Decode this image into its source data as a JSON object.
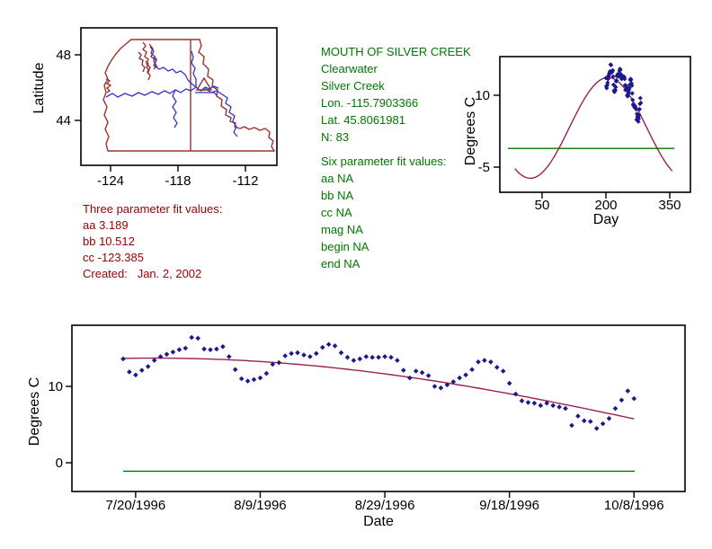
{
  "figure": {
    "background": "#FFFFFF"
  },
  "colors": {
    "axis": "#000000",
    "border_red": "#993333",
    "river_blue": "#3333CC",
    "fit_maroon": "#992255",
    "baseline_green": "#007700",
    "point_navy": "#1A1A8C",
    "annotation_green": "#007700",
    "annotation_red": "#990000"
  },
  "station_info": {
    "lines": [
      "MOUTH OF SILVER CREEK",
      "Clearwater",
      "Silver Creek",
      "Lon. -115.7903366",
      "Lat. 45.8061981",
      "N: 83"
    ]
  },
  "six_param_fit": {
    "lines": [
      "Six parameter fit values:",
      "aa NA",
      "bb NA",
      "cc NA",
      "mag NA",
      "begin NA",
      "end NA"
    ]
  },
  "three_param_fit": {
    "lines": [
      "Three parameter fit values:",
      "aa 3.189",
      "bb 10.512",
      "cc -123.385",
      "Created:   Jan. 2, 2002"
    ]
  },
  "chart_data": [
    {
      "id": "site-map",
      "type": "map",
      "xlabel": "",
      "ylabel": "Latitude",
      "x_ticks": [
        -124,
        -118,
        -112
      ],
      "y_ticks": [
        48,
        44
      ],
      "site": {
        "lon": -115.7903366,
        "lat": 45.8061981
      }
    },
    {
      "id": "seasonal-fit-plot",
      "type": "scatter",
      "title": "",
      "xlabel": "Day",
      "ylabel": "Degrees C",
      "x_ticks": [
        50,
        200,
        350
      ],
      "y_ticks": [
        10,
        -5
      ],
      "xlim": [
        -35,
        400
      ],
      "ylim": [
        -10,
        16
      ],
      "x_start_day": 200,
      "n": 83,
      "values": [
        13.6,
        11.9,
        11.5,
        12.1,
        12.6,
        13.4,
        13.9,
        14.2,
        14.5,
        14.8,
        15.0,
        16.4,
        16.3,
        14.9,
        14.8,
        14.9,
        15.2,
        13.9,
        12.2,
        11.0,
        10.7,
        10.9,
        11.1,
        11.7,
        12.9,
        13.1,
        14.0,
        14.3,
        14.4,
        14.1,
        13.9,
        14.3,
        15.1,
        15.5,
        15.3,
        14.4,
        13.8,
        13.4,
        13.6,
        13.9,
        13.8,
        13.8,
        13.9,
        13.8,
        13.4,
        12.1,
        11.1,
        12.0,
        11.8,
        11.4,
        10.0,
        9.8,
        10.2,
        10.6,
        11.1,
        11.5,
        12.2,
        13.2,
        13.4,
        13.2,
        12.5,
        12.0,
        10.4,
        9.0,
        8.1,
        7.9,
        7.8,
        7.5,
        7.8,
        7.5,
        7.3,
        7.1,
        4.9,
        6.1,
        5.5,
        5.4,
        4.5,
        5.1,
        5.8,
        7.1,
        8.2,
        9.4,
        8.4
      ],
      "fit_curve": {
        "aa": 3.189,
        "bb": 10.512,
        "cc": -123.385,
        "peak_day": 205,
        "period": 365
      },
      "baseline_value": -1.1
    },
    {
      "id": "time-series-plot",
      "type": "scatter",
      "title": "",
      "xlabel": "Date",
      "ylabel": "Degrees C",
      "x_ticks": [
        {
          "label": "7/20/1996",
          "index": 2
        },
        {
          "label": "8/9/1996",
          "index": 22
        },
        {
          "label": "8/29/1996",
          "index": 42
        },
        {
          "label": "9/18/1996",
          "index": 62
        },
        {
          "label": "10/8/1996",
          "index": 82
        }
      ],
      "y_ticks": [
        10,
        0
      ],
      "start_date": "7/18/1996",
      "end_date": "10/8/1996",
      "values_from": "seasonal-fit-plot",
      "baseline_value": -1.1
    }
  ]
}
